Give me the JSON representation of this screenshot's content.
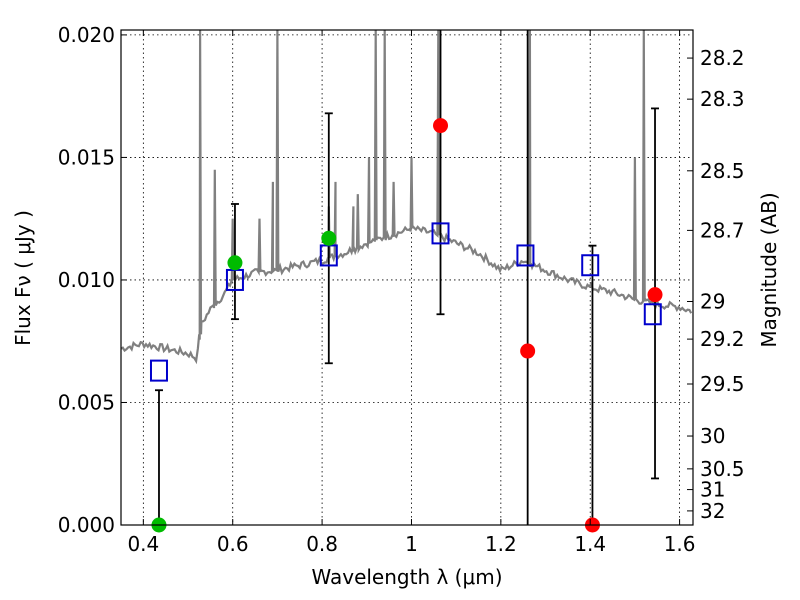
{
  "chart_data": {
    "type": "scatter",
    "xlabel": "Wavelength  λ (μm)",
    "ylabel": "Flux  Fν  ( μJy )",
    "y2label": "Magnitude (AB)",
    "xlim": [
      0.35,
      1.63
    ],
    "ylim": [
      0.0,
      0.0202
    ],
    "x_ticks": [
      0.4,
      0.6,
      0.8,
      1.0,
      1.2,
      1.4,
      1.6
    ],
    "x_tick_labels": [
      "0.4",
      "0.6",
      "0.8",
      "1",
      "1.2",
      "1.4",
      "1.6"
    ],
    "y_ticks": [
      0.0,
      0.005,
      0.01,
      0.015,
      0.02
    ],
    "y_tick_labels": [
      "0.000",
      "0.005",
      "0.010",
      "0.015",
      "0.020"
    ],
    "mag_ticks": [
      "28.2",
      "28.3",
      "28.5",
      "28.7",
      "29",
      "29.2",
      "29.5",
      "30",
      "30.5",
      "31",
      "32"
    ],
    "grid": true,
    "colors": {
      "spectrum": "#808080",
      "model_box": "#0000cc",
      "detection": "#00bb00",
      "limit": "#ff0000",
      "errorbar": "#000000"
    },
    "spectrum": {
      "name": "",
      "continuum": [
        [
          0.35,
          0.0072
        ],
        [
          0.4,
          0.0074
        ],
        [
          0.45,
          0.0072
        ],
        [
          0.5,
          0.007
        ],
        [
          0.52,
          0.0068
        ],
        [
          0.53,
          0.0082
        ],
        [
          0.55,
          0.0088
        ],
        [
          0.58,
          0.0094
        ],
        [
          0.6,
          0.01
        ],
        [
          0.62,
          0.0101
        ],
        [
          0.65,
          0.0103
        ],
        [
          0.7,
          0.0104
        ],
        [
          0.75,
          0.0106
        ],
        [
          0.8,
          0.0108
        ],
        [
          0.85,
          0.0111
        ],
        [
          0.9,
          0.0115
        ],
        [
          0.95,
          0.0118
        ],
        [
          1.0,
          0.0121
        ],
        [
          1.05,
          0.0119
        ],
        [
          1.1,
          0.0115
        ],
        [
          1.15,
          0.0111
        ],
        [
          1.2,
          0.0104
        ],
        [
          1.25,
          0.0108
        ],
        [
          1.3,
          0.0104
        ],
        [
          1.35,
          0.01
        ],
        [
          1.4,
          0.0097
        ],
        [
          1.45,
          0.0095
        ],
        [
          1.5,
          0.0092
        ],
        [
          1.55,
          0.009
        ],
        [
          1.6,
          0.0089
        ],
        [
          1.63,
          0.0087
        ]
      ],
      "emission_lines": [
        [
          0.527,
          0.0202
        ],
        [
          0.56,
          0.0145
        ],
        [
          0.6,
          0.0125
        ],
        [
          0.66,
          0.0125
        ],
        [
          0.69,
          0.014
        ],
        [
          0.7,
          0.0202
        ],
        [
          0.815,
          0.013
        ],
        [
          0.83,
          0.014
        ],
        [
          0.87,
          0.013
        ],
        [
          0.88,
          0.0135
        ],
        [
          0.905,
          0.015
        ],
        [
          0.92,
          0.0202
        ],
        [
          0.94,
          0.0202
        ],
        [
          0.96,
          0.014
        ],
        [
          1.0,
          0.015
        ],
        [
          1.06,
          0.0202
        ],
        [
          1.265,
          0.0202
        ],
        [
          1.5,
          0.015
        ],
        [
          1.52,
          0.0202
        ]
      ]
    },
    "model_points": [
      {
        "x": 0.435,
        "y": 0.0063
      },
      {
        "x": 0.605,
        "y": 0.01
      },
      {
        "x": 0.815,
        "y": 0.011
      },
      {
        "x": 1.065,
        "y": 0.0119
      },
      {
        "x": 1.255,
        "y": 0.011
      },
      {
        "x": 1.4,
        "y": 0.0106
      },
      {
        "x": 1.54,
        "y": 0.0086
      }
    ],
    "observed_points": [
      {
        "x": 0.435,
        "y": 0.0,
        "yerr_low": 0.0,
        "yerr_high": 0.0055,
        "color": "#00bb00"
      },
      {
        "x": 0.605,
        "y": 0.0107,
        "yerr_low": 0.0084,
        "yerr_high": 0.0131,
        "color": "#00bb00"
      },
      {
        "x": 0.815,
        "y": 0.0117,
        "yerr_low": 0.0066,
        "yerr_high": 0.0168,
        "color": "#00bb00"
      },
      {
        "x": 1.065,
        "y": 0.0163,
        "yerr_low": 0.0086,
        "yerr_high": 0.0202,
        "color": "#ff0000"
      },
      {
        "x": 1.26,
        "y": 0.0071,
        "yerr_low": 0.0,
        "yerr_high": 0.0202,
        "color": "#ff0000"
      },
      {
        "x": 1.405,
        "y": 0.0,
        "yerr_low": 0.0,
        "yerr_high": 0.0114,
        "color": "#ff0000"
      },
      {
        "x": 1.545,
        "y": 0.0094,
        "yerr_low": 0.0019,
        "yerr_high": 0.017,
        "color": "#ff0000"
      }
    ]
  }
}
